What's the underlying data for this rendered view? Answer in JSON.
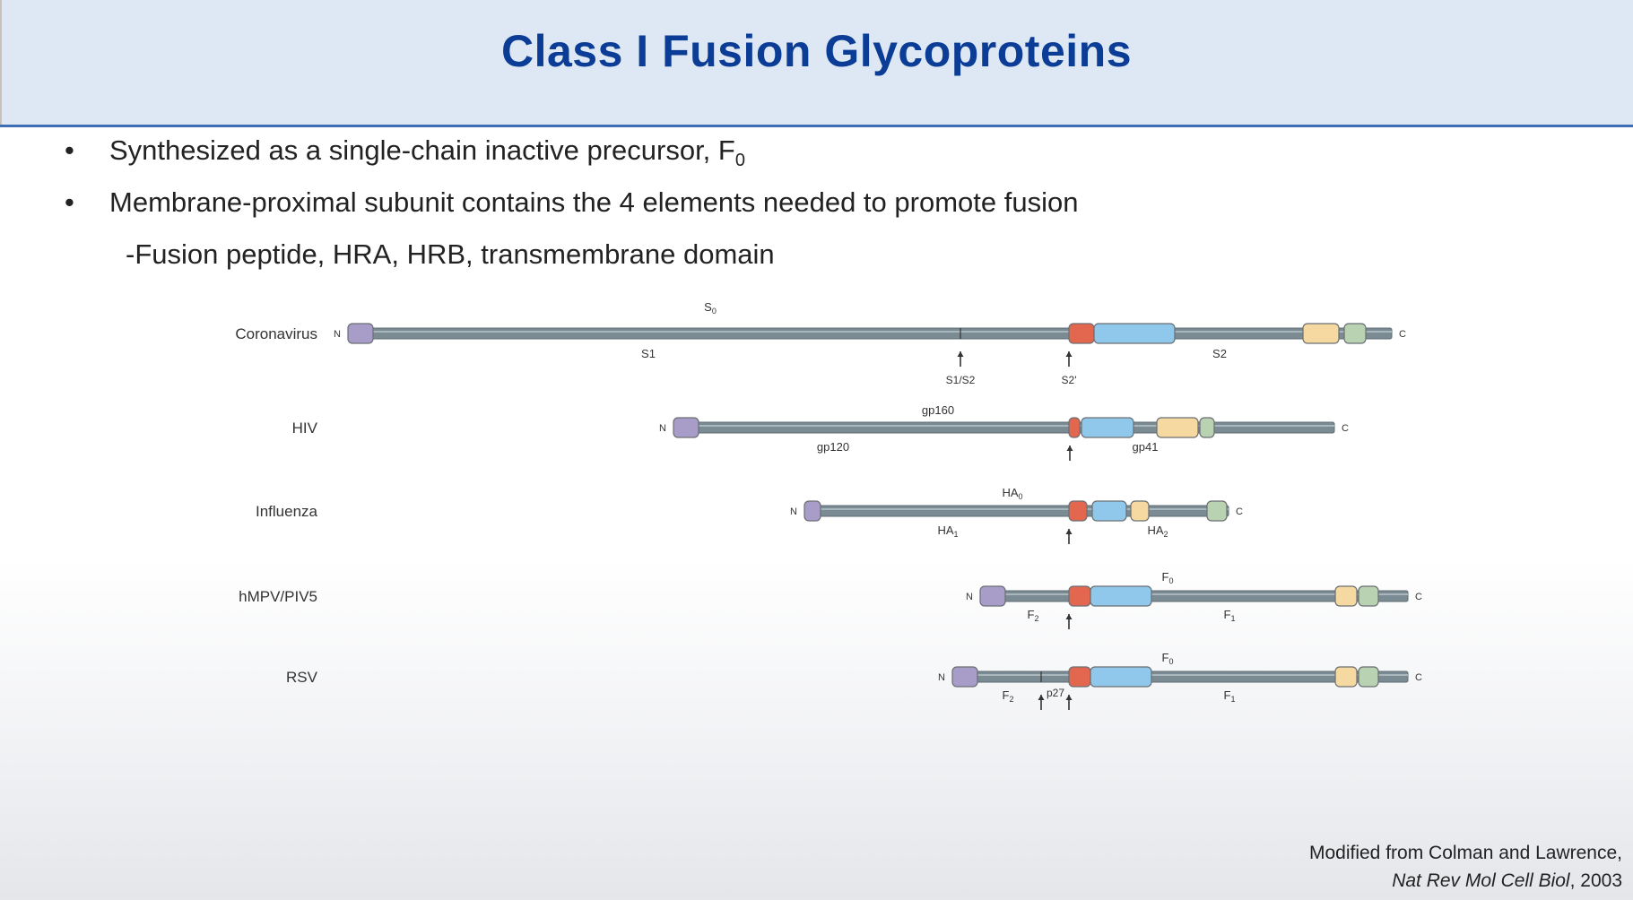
{
  "title": "Class I Fusion Glycoproteins",
  "bullets": [
    {
      "text": "Synthesized as a single-chain inactive precursor, F",
      "sub": "0"
    },
    {
      "text": "Membrane-proximal subunit contains the 4 elements needed to promote fusion"
    }
  ],
  "subbullet": "-Fusion peptide, HRA, HRB, transmembrane domain",
  "colors": {
    "backbone": "#7b8b93",
    "domain_N": "#a89cc8",
    "fusion_peptide": "#e2674e",
    "hra": "#8fc8ea",
    "hrb": "#f6d9a0",
    "tm": "#b9d2b2"
  },
  "proteins": [
    {
      "name": "Coronavirus",
      "n_label": "N",
      "c_label": "C",
      "top_labels": [
        {
          "text": "S",
          "sub": "0"
        }
      ],
      "bottom_labels": [
        {
          "text": "S1"
        },
        {
          "text": "S2"
        }
      ],
      "cleavage_labels": [
        {
          "text": "S1/S2"
        },
        {
          "text": "S2'"
        }
      ]
    },
    {
      "name": "HIV",
      "n_label": "N",
      "c_label": "C",
      "top_labels": [
        {
          "text": "gp160"
        }
      ],
      "bottom_labels": [
        {
          "text": "gp120"
        },
        {
          "text": "gp41"
        }
      ],
      "cleavage_labels": []
    },
    {
      "name": "Influenza",
      "n_label": "N",
      "c_label": "C",
      "top_labels": [
        {
          "text": "HA",
          "sub": "0"
        }
      ],
      "bottom_labels": [
        {
          "text": "HA",
          "sub": "1"
        },
        {
          "text": "HA",
          "sub": "2"
        }
      ],
      "cleavage_labels": []
    },
    {
      "name": "hMPV/PIV5",
      "n_label": "N",
      "c_label": "C",
      "top_labels": [
        {
          "text": "F",
          "sub": "0"
        }
      ],
      "bottom_labels": [
        {
          "text": "F",
          "sub": "2"
        },
        {
          "text": "F",
          "sub": "1"
        }
      ],
      "cleavage_labels": []
    },
    {
      "name": "RSV",
      "n_label": "N",
      "c_label": "C",
      "top_labels": [
        {
          "text": "F",
          "sub": "0"
        }
      ],
      "bottom_labels": [
        {
          "text": "F",
          "sub": "2"
        },
        {
          "text": "F",
          "sub": "1"
        }
      ],
      "cleavage_labels": [
        {
          "text": "p27"
        }
      ]
    }
  ],
  "citation": {
    "line1": "Modified from Colman and Lawrence,",
    "journal": "Nat Rev Mol Cell Biol",
    "year": ", 2003"
  }
}
